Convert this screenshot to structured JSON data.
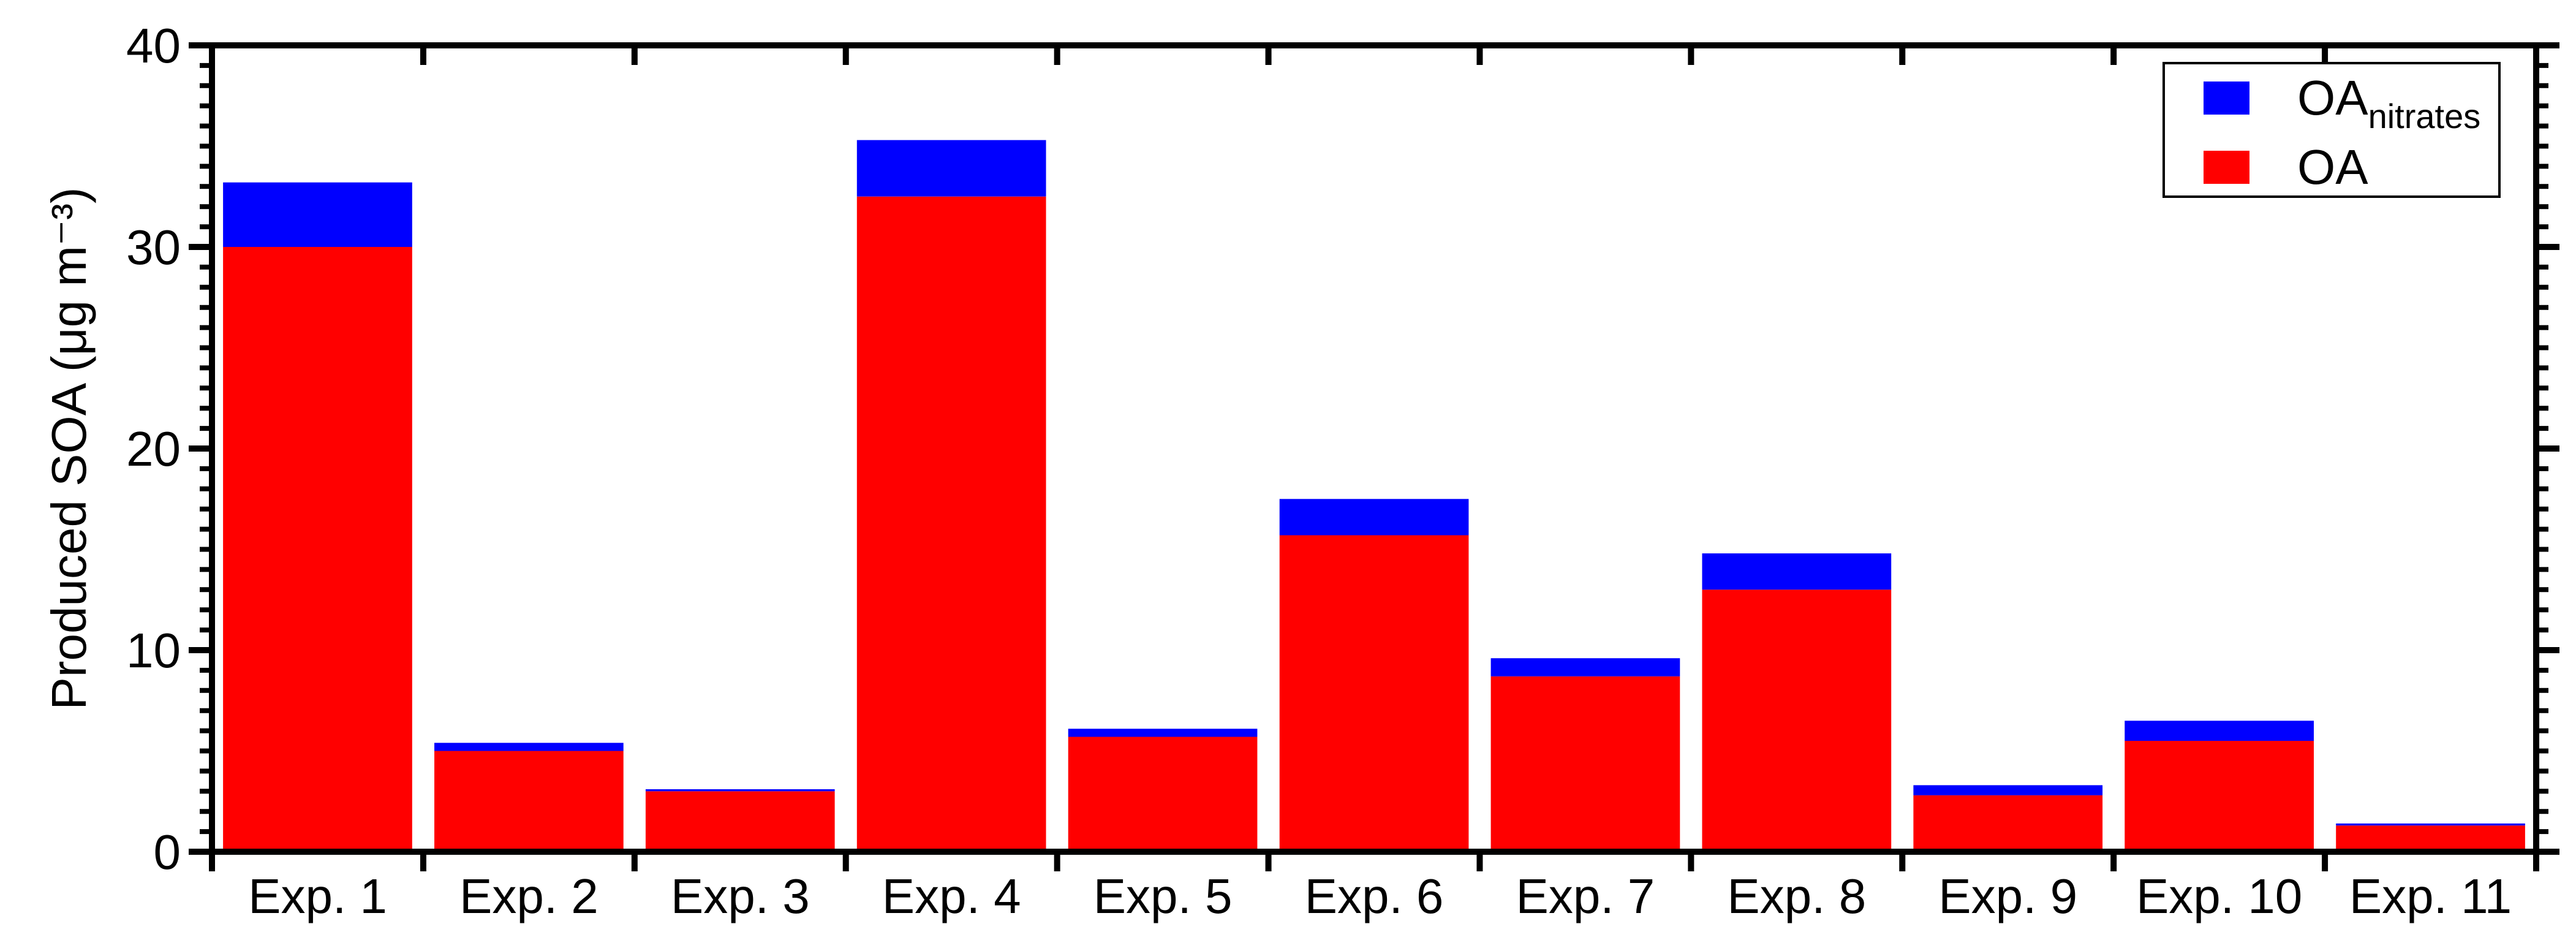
{
  "chart_data": {
    "type": "bar",
    "stacked": true,
    "categories": [
      "Exp. 1",
      "Exp. 2",
      "Exp. 3",
      "Exp. 4",
      "Exp. 5",
      "Exp. 6",
      "Exp. 7",
      "Exp. 8",
      "Exp. 9",
      "Exp. 10",
      "Exp. 11"
    ],
    "series": [
      {
        "name": "OA",
        "color": "#ff0000",
        "values": [
          30.0,
          5.0,
          3.0,
          32.5,
          5.7,
          15.7,
          8.7,
          13.0,
          2.8,
          5.5,
          1.3
        ]
      },
      {
        "name": "OA_nitrates",
        "color": "#0000ff",
        "values": [
          3.2,
          0.4,
          0.1,
          2.8,
          0.4,
          1.8,
          0.9,
          1.8,
          0.5,
          1.0,
          0.1
        ]
      }
    ],
    "ylabel": "Produced SOA (μg m⁻³)",
    "ylim": [
      0,
      40
    ],
    "yticks": [
      "0",
      "10",
      "20",
      "30",
      "40"
    ],
    "grid": false,
    "legend_position": "top-right",
    "legend": [
      {
        "label": "OA",
        "sub": "nitrates",
        "color": "#0000ff"
      },
      {
        "label": "OA",
        "sub": "",
        "color": "#ff0000"
      }
    ]
  }
}
